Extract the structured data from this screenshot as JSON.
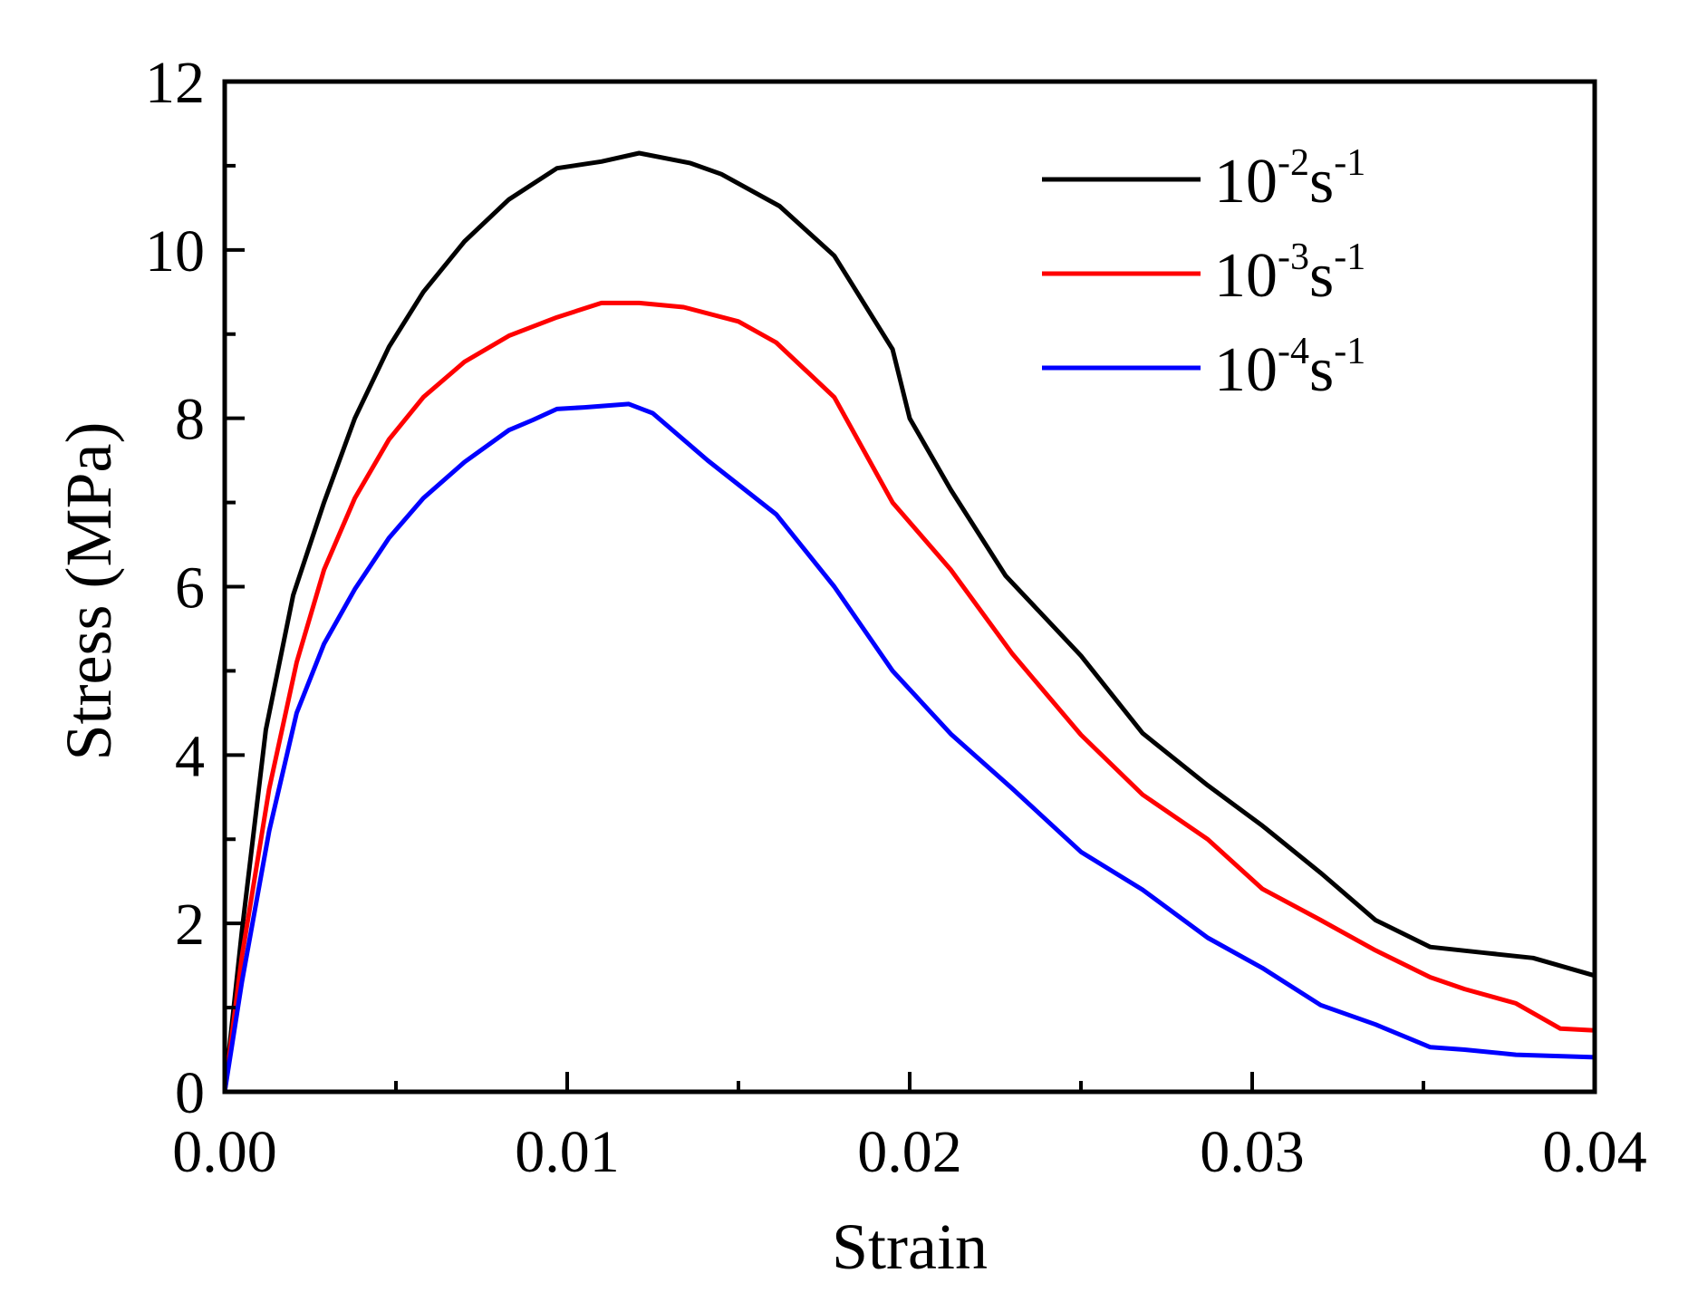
{
  "chart_data": {
    "type": "line",
    "xlabel": "Strain",
    "ylabel": "Stress (MPa)",
    "xlim": [
      0,
      0.04
    ],
    "ylim": [
      0,
      12
    ],
    "xticks": [
      0.0,
      0.01,
      0.02,
      0.03,
      0.04
    ],
    "xtick_labels": [
      "0.00",
      "0.01",
      "0.02",
      "0.03",
      "0.04"
    ],
    "yticks": [
      0,
      2,
      4,
      6,
      8,
      10,
      12
    ],
    "ytick_labels": [
      "0",
      "2",
      "4",
      "6",
      "8",
      "10",
      "12"
    ],
    "grid": false,
    "legend_position": "top-right",
    "series": [
      {
        "name": "10-2s-1",
        "legend_base": "10",
        "legend_exp1": "-2",
        "legend_unit": "s",
        "legend_exp2": "-1",
        "color": "#000000",
        "x": [
          0,
          0.0005,
          0.0012,
          0.002,
          0.0029,
          0.0038,
          0.0048,
          0.0058,
          0.007,
          0.0083,
          0.0097,
          0.011,
          0.0121,
          0.0136,
          0.0145,
          0.0162,
          0.0178,
          0.0195,
          0.02,
          0.0212,
          0.0228,
          0.025,
          0.0268,
          0.0287,
          0.0303,
          0.032,
          0.0336,
          0.0352,
          0.0368,
          0.0382,
          0.04
        ],
        "y": [
          0,
          1.9,
          4.3,
          5.9,
          7.0,
          8.0,
          8.85,
          9.5,
          10.1,
          10.6,
          10.97,
          11.05,
          11.15,
          11.03,
          10.9,
          10.52,
          9.93,
          8.82,
          8.0,
          7.15,
          6.13,
          5.18,
          4.26,
          3.64,
          3.16,
          2.6,
          2.04,
          1.72,
          1.65,
          1.59,
          1.38
        ]
      },
      {
        "name": "10-3s-1",
        "legend_base": "10",
        "legend_exp1": "-3",
        "legend_unit": "s",
        "legend_exp2": "-1",
        "color": "#ff0000",
        "x": [
          0,
          0.0005,
          0.0013,
          0.0021,
          0.0029,
          0.0038,
          0.0048,
          0.0058,
          0.007,
          0.0083,
          0.0097,
          0.011,
          0.0121,
          0.0134,
          0.015,
          0.0161,
          0.0178,
          0.0195,
          0.0212,
          0.023,
          0.025,
          0.0268,
          0.0287,
          0.0303,
          0.032,
          0.0336,
          0.0352,
          0.0362,
          0.0377,
          0.039,
          0.04
        ],
        "y": [
          0,
          1.6,
          3.6,
          5.1,
          6.2,
          7.05,
          7.75,
          8.25,
          8.67,
          8.98,
          9.2,
          9.37,
          9.37,
          9.32,
          9.15,
          8.9,
          8.25,
          7.0,
          6.2,
          5.2,
          4.24,
          3.53,
          3.0,
          2.41,
          2.04,
          1.68,
          1.36,
          1.22,
          1.05,
          0.75,
          0.73
        ]
      },
      {
        "name": "10-4s-1",
        "legend_base": "10",
        "legend_exp1": "-4",
        "legend_unit": "s",
        "legend_exp2": "-1",
        "color": "#0000ff",
        "x": [
          0,
          0.0005,
          0.0013,
          0.0021,
          0.0029,
          0.0038,
          0.0048,
          0.0058,
          0.007,
          0.0083,
          0.009,
          0.0097,
          0.0105,
          0.0118,
          0.0125,
          0.0141,
          0.0161,
          0.0178,
          0.0195,
          0.0212,
          0.023,
          0.025,
          0.0268,
          0.0287,
          0.0303,
          0.032,
          0.0336,
          0.0352,
          0.0362,
          0.0377,
          0.04
        ],
        "y": [
          0,
          1.3,
          3.1,
          4.5,
          5.32,
          5.97,
          6.58,
          7.05,
          7.48,
          7.86,
          7.98,
          8.11,
          8.13,
          8.17,
          8.06,
          7.5,
          6.86,
          6.0,
          5.0,
          4.25,
          3.6,
          2.85,
          2.4,
          1.83,
          1.47,
          1.03,
          0.8,
          0.53,
          0.5,
          0.44,
          0.41
        ]
      }
    ]
  }
}
